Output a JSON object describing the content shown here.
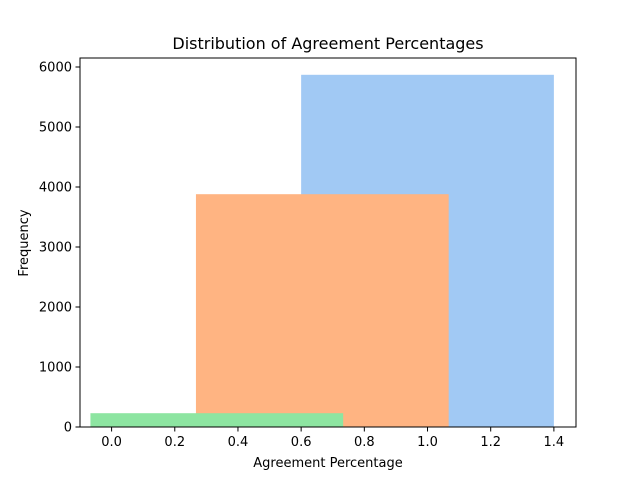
{
  "chart_data": {
    "type": "bar",
    "title": "Distribution of Agreement Percentages",
    "xlabel": "Agreement Percentage",
    "ylabel": "Frequency",
    "xlim": [
      -0.1,
      1.47
    ],
    "ylim": [
      0,
      6150
    ],
    "xticks": [
      0.0,
      0.2,
      0.4,
      0.6,
      0.8,
      1.0,
      1.2,
      1.4
    ],
    "xtick_labels": [
      "0.0",
      "0.2",
      "0.4",
      "0.6",
      "0.8",
      "1.0",
      "1.2",
      "1.4"
    ],
    "yticks": [
      0,
      1000,
      2000,
      3000,
      4000,
      5000,
      6000
    ],
    "ytick_labels": [
      "0",
      "1000",
      "2000",
      "3000",
      "4000",
      "5000",
      "6000"
    ],
    "grid": false,
    "legend": "none",
    "bars": [
      {
        "x_start": 0.6,
        "x_end": 1.4,
        "value": 5870,
        "color": "#a1c9f4"
      },
      {
        "x_start": 0.267,
        "x_end": 1.067,
        "value": 3880,
        "color": "#ffb482"
      },
      {
        "x_start": -0.067,
        "x_end": 0.733,
        "value": 230,
        "color": "#8de5a1"
      }
    ]
  }
}
